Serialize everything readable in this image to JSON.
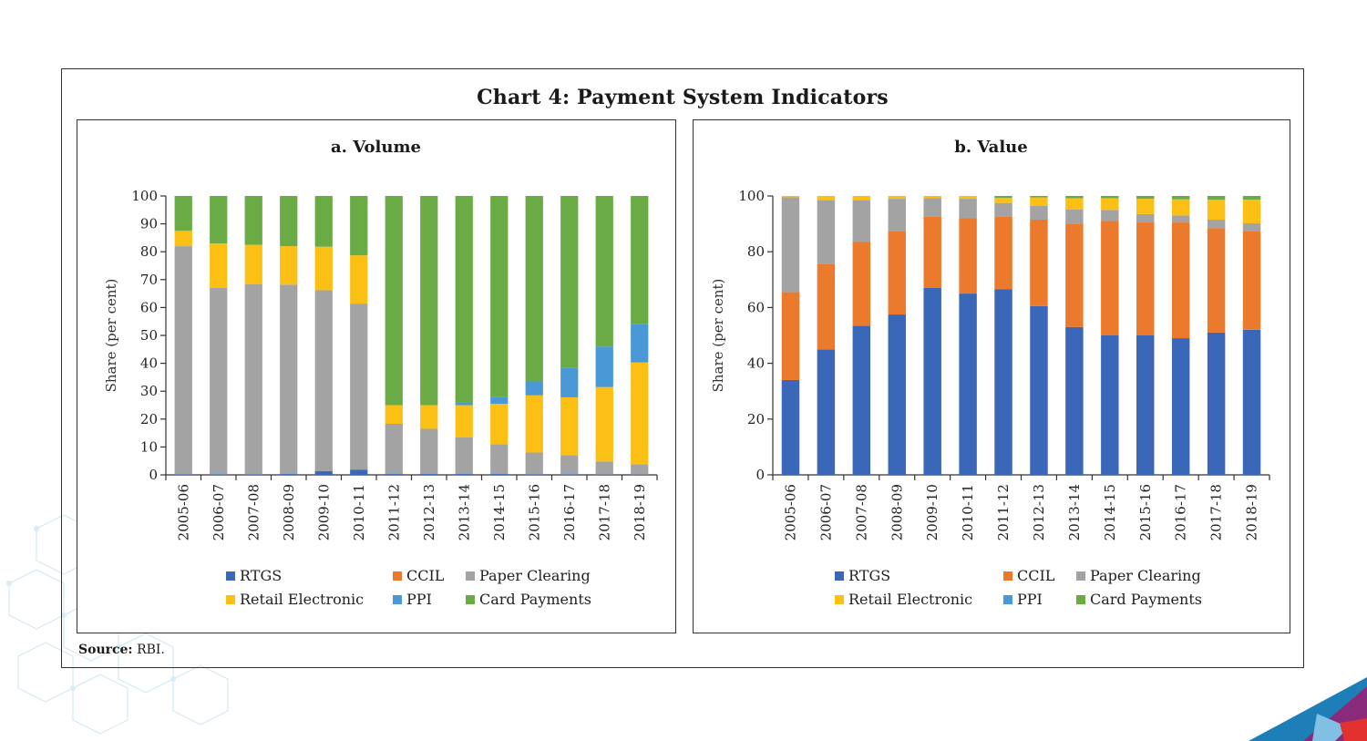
{
  "title": "Chart 4: Payment System Indicators",
  "source_label": "Source:",
  "source_text": "RBI.",
  "colors": {
    "RTGS": "#3a67b8",
    "CCIL": "#ec7a2c",
    "Paper Clearing": "#a3a3a3",
    "Retail Electronic": "#fcbf14",
    "PPI": "#4a98d6",
    "Card Payments": "#6aab46"
  },
  "chart_data": [
    {
      "type": "bar",
      "stacked": true,
      "title": "a. Volume",
      "ylabel": "Share (per cent)",
      "ylim": [
        0,
        100
      ],
      "yticks": [
        0,
        10,
        20,
        30,
        40,
        50,
        60,
        70,
        80,
        90,
        100
      ],
      "categories": [
        "2005-06",
        "2006-07",
        "2007-08",
        "2008-09",
        "2009-10",
        "2010-11",
        "2011-12",
        "2012-13",
        "2013-14",
        "2014-15",
        "2015-16",
        "2016-17",
        "2017-18",
        "2018-19"
      ],
      "legend": [
        [
          "RTGS",
          "CCIL",
          "Paper Clearing"
        ],
        [
          "Retail Electronic",
          "PPI",
          "Card Payments"
        ]
      ],
      "series": [
        {
          "name": "RTGS",
          "values": [
            0.2,
            0.2,
            0.2,
            0.3,
            1.3,
            1.8,
            0.3,
            0.3,
            0.3,
            0.3,
            0.2,
            0.2,
            0.1,
            0.1
          ]
        },
        {
          "name": "CCIL",
          "values": [
            0,
            0,
            0,
            0,
            0,
            0,
            0,
            0,
            0,
            0,
            0,
            0,
            0,
            0
          ]
        },
        {
          "name": "Paper Clearing",
          "values": [
            81.8,
            66.8,
            68.1,
            67.9,
            64.9,
            59.6,
            18,
            16.2,
            13.2,
            10.7,
            7.8,
            6.8,
            4.7,
            3.7
          ]
        },
        {
          "name": "Retail Electronic",
          "values": [
            5.5,
            16,
            14.2,
            13.8,
            15.6,
            17.3,
            6.7,
            8.5,
            11.5,
            14.5,
            20.5,
            20.8,
            26.7,
            36.5
          ]
        },
        {
          "name": "PPI",
          "values": [
            0,
            0,
            0,
            0,
            0,
            0,
            0,
            0,
            1,
            2.5,
            5,
            10.7,
            14.5,
            13.7
          ]
        },
        {
          "name": "Card Payments",
          "values": [
            12.5,
            17,
            17.5,
            18,
            18.2,
            21.3,
            75,
            75,
            74,
            72,
            66.5,
            61.5,
            54,
            46
          ]
        }
      ]
    },
    {
      "type": "bar",
      "stacked": true,
      "title": "b. Value",
      "ylabel": "Share (per cent)",
      "ylim": [
        0,
        100
      ],
      "yticks": [
        0,
        20,
        40,
        60,
        80,
        100
      ],
      "categories": [
        "2005-06",
        "2006-07",
        "2007-08",
        "2008-09",
        "2009-10",
        "2010-11",
        "2011-12",
        "2012-13",
        "2013-14",
        "2014-15",
        "2015-16",
        "2016-17",
        "2017-18",
        "2018-19"
      ],
      "legend": [
        [
          "RTGS",
          "CCIL",
          "Paper Clearing"
        ],
        [
          "Retail Electronic",
          "PPI",
          "Card Payments"
        ]
      ],
      "series": [
        {
          "name": "RTGS",
          "values": [
            34,
            45,
            53.5,
            57.5,
            67,
            65,
            66.5,
            60.5,
            53,
            50,
            50,
            49,
            51,
            52
          ]
        },
        {
          "name": "CCIL",
          "values": [
            31.5,
            30.5,
            30,
            30,
            25.5,
            27,
            26,
            31,
            37,
            41,
            40.5,
            41.5,
            37.5,
            35.5
          ]
        },
        {
          "name": "Paper Clearing",
          "values": [
            34,
            23,
            15,
            11.5,
            6.7,
            7,
            5,
            5,
            5.2,
            4,
            3,
            2.5,
            3,
            2.7
          ]
        },
        {
          "name": "Retail Electronic",
          "values": [
            0.5,
            1.5,
            1.5,
            1,
            0.8,
            1,
            1.8,
            3,
            4,
            4.2,
            5.5,
            5.8,
            7.2,
            8.5
          ]
        },
        {
          "name": "PPI",
          "values": [
            0,
            0,
            0,
            0,
            0,
            0,
            0,
            0,
            0,
            0,
            0,
            0,
            0,
            0
          ]
        },
        {
          "name": "Card Payments",
          "values": [
            0,
            0,
            0,
            0,
            0,
            0,
            0.7,
            0.5,
            0.8,
            0.8,
            1,
            1.2,
            1.3,
            1.3
          ]
        }
      ]
    }
  ]
}
